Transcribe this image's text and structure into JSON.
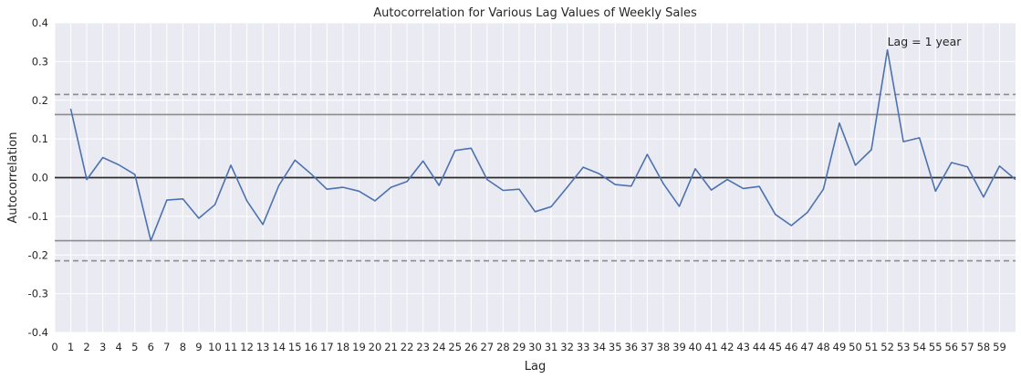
{
  "chart_data": {
    "type": "line",
    "title": "Autocorrelation for Various Lag Values of Weekly Sales",
    "xlabel": "Lag",
    "ylabel": "Autocorrelation",
    "xlim": [
      0,
      60
    ],
    "ylim": [
      -0.4,
      0.4
    ],
    "x_ticks": [
      0,
      1,
      2,
      3,
      4,
      5,
      6,
      7,
      8,
      9,
      10,
      11,
      12,
      13,
      14,
      15,
      16,
      17,
      18,
      19,
      20,
      21,
      22,
      23,
      24,
      25,
      26,
      27,
      28,
      29,
      30,
      31,
      32,
      33,
      34,
      35,
      36,
      37,
      38,
      39,
      40,
      41,
      42,
      43,
      44,
      45,
      46,
      47,
      48,
      49,
      50,
      51,
      52,
      53,
      54,
      55,
      56,
      57,
      58,
      59
    ],
    "y_ticks": [
      "0.4",
      "0.3",
      "0.2",
      "0.1",
      "0.0",
      "-0.1",
      "-0.2",
      "-0.3",
      "-0.4"
    ],
    "y_tick_values": [
      0.4,
      0.3,
      0.2,
      0.1,
      0.0,
      -0.1,
      -0.2,
      -0.3,
      -0.4
    ],
    "grid": true,
    "series": [
      {
        "x": [
          1,
          2,
          3,
          4,
          5,
          6,
          7,
          8,
          9,
          10,
          11,
          12,
          13,
          14,
          15,
          16,
          17,
          18,
          19,
          20,
          21,
          22,
          23,
          24,
          25,
          26,
          27,
          28,
          29,
          30,
          31,
          32,
          33,
          34,
          35,
          36,
          37,
          38,
          39,
          40,
          41,
          42,
          43,
          44,
          45,
          46,
          47,
          48,
          49,
          50,
          51,
          52,
          53,
          54,
          55,
          56,
          57,
          58,
          59,
          60
        ],
        "values": [
          0.178,
          -0.005,
          0.052,
          0.033,
          0.008,
          -0.163,
          -0.058,
          -0.055,
          -0.105,
          -0.07,
          0.032,
          -0.06,
          -0.121,
          -0.02,
          0.045,
          0.01,
          -0.03,
          -0.025,
          -0.035,
          -0.06,
          -0.025,
          -0.01,
          0.043,
          -0.02,
          0.07,
          0.076,
          -0.005,
          -0.033,
          -0.03,
          -0.088,
          -0.075,
          -0.025,
          0.027,
          0.01,
          -0.018,
          -0.022,
          0.06,
          -0.015,
          -0.074,
          0.023,
          -0.032,
          -0.005,
          -0.028,
          -0.023,
          -0.095,
          -0.124,
          -0.09,
          -0.03,
          0.141,
          0.032,
          0.072,
          0.33,
          0.093,
          0.103,
          -0.035,
          0.039,
          0.028,
          -0.05,
          0.03,
          -0.005
        ],
        "color": "#4C72B0"
      }
    ],
    "reference_lines": [
      {
        "y": 0.0,
        "style": "solid",
        "color": "#2a2a2a"
      },
      {
        "y": 0.163,
        "style": "solid",
        "color": "#8c8c8c"
      },
      {
        "y": -0.163,
        "style": "solid",
        "color": "#8c8c8c"
      },
      {
        "y": 0.215,
        "style": "dashed",
        "color": "#8c8c8c"
      },
      {
        "y": -0.215,
        "style": "dashed",
        "color": "#8c8c8c"
      }
    ],
    "annotation": {
      "text": "Lag = 1 year",
      "x": 52,
      "y": 0.35
    },
    "background_color": "#EAEAF2"
  }
}
